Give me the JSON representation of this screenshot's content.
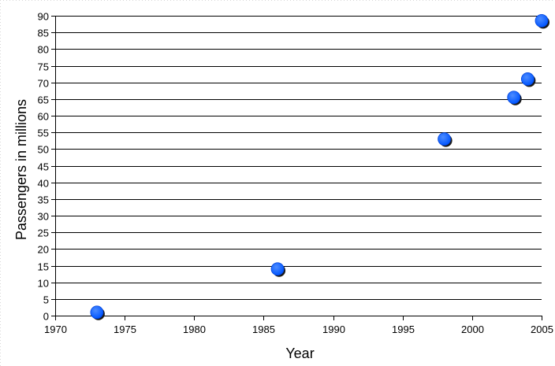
{
  "chart_data": {
    "type": "scatter",
    "title": "",
    "xlabel": "Year",
    "ylabel": "Passengers in millions",
    "xlim": [
      1970,
      2005
    ],
    "ylim": [
      0,
      90
    ],
    "x_ticks": [
      1970,
      1975,
      1980,
      1985,
      1990,
      1995,
      2000,
      2005
    ],
    "y_ticks": [
      0,
      5,
      10,
      15,
      20,
      25,
      30,
      35,
      40,
      45,
      50,
      55,
      60,
      65,
      70,
      75,
      80,
      85,
      90
    ],
    "grid": "horizontal",
    "legend": "none",
    "marker_color": "#0055ff",
    "points": [
      {
        "x": 1973,
        "y": 1
      },
      {
        "x": 1986,
        "y": 14
      },
      {
        "x": 1998,
        "y": 53
      },
      {
        "x": 2003,
        "y": 65.5
      },
      {
        "x": 2004,
        "y": 71
      },
      {
        "x": 2005,
        "y": 88.5
      }
    ]
  }
}
